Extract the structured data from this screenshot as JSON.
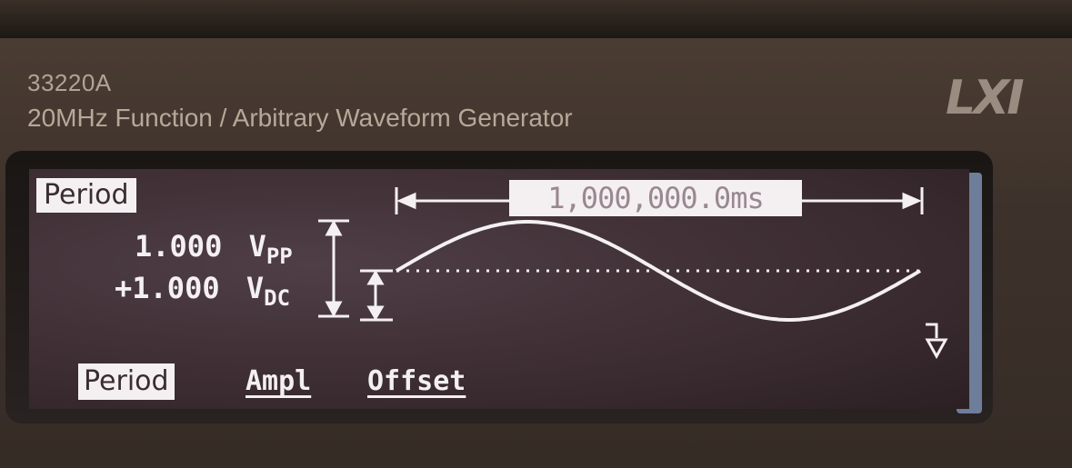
{
  "device": {
    "model": "33220A",
    "subtitle": "20MHz Function / Arbitrary Waveform Generator",
    "logo": "LXI"
  },
  "display": {
    "active_parameter": "Period",
    "period_value": "1,000,000.0ms",
    "amplitude_value": "1.000",
    "amplitude_unit": "V",
    "amplitude_subscript": "PP",
    "offset_value": "+1.000",
    "offset_unit": "V",
    "offset_subscript": "DC",
    "waveform": "sine"
  },
  "softkeys": [
    {
      "label": "Period",
      "selected": true
    },
    {
      "label": "Ampl",
      "selected": false
    },
    {
      "label": "Offset",
      "selected": false
    }
  ],
  "colors": {
    "lcd_background": "#3d2e33",
    "lcd_foreground": "#f4f0f2",
    "panel": "#3d322b"
  }
}
